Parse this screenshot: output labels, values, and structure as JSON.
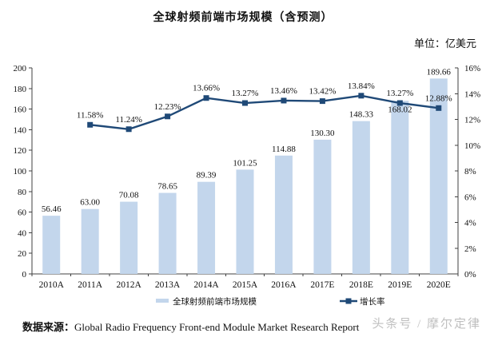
{
  "title": "全球射频前端市场规模（含预测）",
  "unit_label": "单位：亿美元",
  "source": {
    "prefix": "数据来源：",
    "text": "Global Radio Frequency Front-end Module Market Research Report"
  },
  "watermark": "头条号 / 摩尔定律",
  "chart_data": {
    "type": "bar+line combo",
    "title": "全球射频前端市场规模（含预测）",
    "unit": "亿美元",
    "categories": [
      "2010A",
      "2011A",
      "2012A",
      "2013A",
      "2014A",
      "2015A",
      "2016A",
      "2017E",
      "2018E",
      "2019E",
      "2020E"
    ],
    "series": [
      {
        "name": "全球射频前端市场规模",
        "type": "bar",
        "axis": "left",
        "color": "#C3D6EC",
        "values": [
          56.46,
          63.0,
          70.08,
          78.65,
          89.39,
          101.25,
          114.88,
          130.3,
          148.33,
          168.02,
          189.66
        ],
        "labels": [
          "56.46",
          "63.00",
          "70.08",
          "78.65",
          "89.39",
          "101.25",
          "114.88",
          "130.30",
          "148.33",
          "168.02",
          "189.66"
        ]
      },
      {
        "name": "增长率",
        "type": "line",
        "axis": "right",
        "color": "#1F4977",
        "values": [
          null,
          11.58,
          11.24,
          12.23,
          13.66,
          13.27,
          13.46,
          13.42,
          13.84,
          13.27,
          12.88
        ],
        "labels": [
          null,
          "11.58%",
          "11.24%",
          "12.23%",
          "13.66%",
          "13.27%",
          "13.46%",
          "13.42%",
          "13.84%",
          "13.27%",
          "12.88%"
        ]
      }
    ],
    "left_axis": {
      "min": 0,
      "max": 200,
      "step": 20,
      "ticks": [
        "0",
        "20",
        "40",
        "60",
        "80",
        "100",
        "120",
        "140",
        "160",
        "180",
        "200"
      ]
    },
    "right_axis": {
      "min": 0,
      "max": 16,
      "step": 2,
      "suffix": "%",
      "ticks": [
        "0%",
        "2%",
        "4%",
        "6%",
        "8%",
        "10%",
        "12%",
        "14%",
        "16%"
      ]
    },
    "grid": false,
    "legend_position": "bottom"
  }
}
